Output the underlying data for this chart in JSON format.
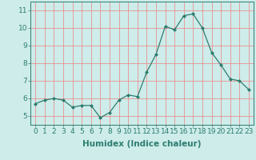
{
  "x": [
    0,
    1,
    2,
    3,
    4,
    5,
    6,
    7,
    8,
    9,
    10,
    11,
    12,
    13,
    14,
    15,
    16,
    17,
    18,
    19,
    20,
    21,
    22,
    23
  ],
  "y": [
    5.7,
    5.9,
    6.0,
    5.9,
    5.5,
    5.6,
    5.6,
    4.9,
    5.2,
    5.9,
    6.2,
    6.1,
    7.5,
    8.5,
    10.1,
    9.9,
    10.7,
    10.8,
    10.0,
    8.6,
    7.9,
    7.1,
    7.0,
    6.5
  ],
  "line_color": "#2d7d6f",
  "marker": "D",
  "marker_size": 2.0,
  "bg_color": "#cdecea",
  "grid_color": "#f08080",
  "ylabel_ticks": [
    5,
    6,
    7,
    8,
    9,
    10,
    11
  ],
  "xlabel": "Humidex (Indice chaleur)",
  "xlim": [
    -0.5,
    23.5
  ],
  "ylim": [
    4.5,
    11.5
  ],
  "xlabel_fontsize": 7.5,
  "tick_fontsize": 6.5
}
